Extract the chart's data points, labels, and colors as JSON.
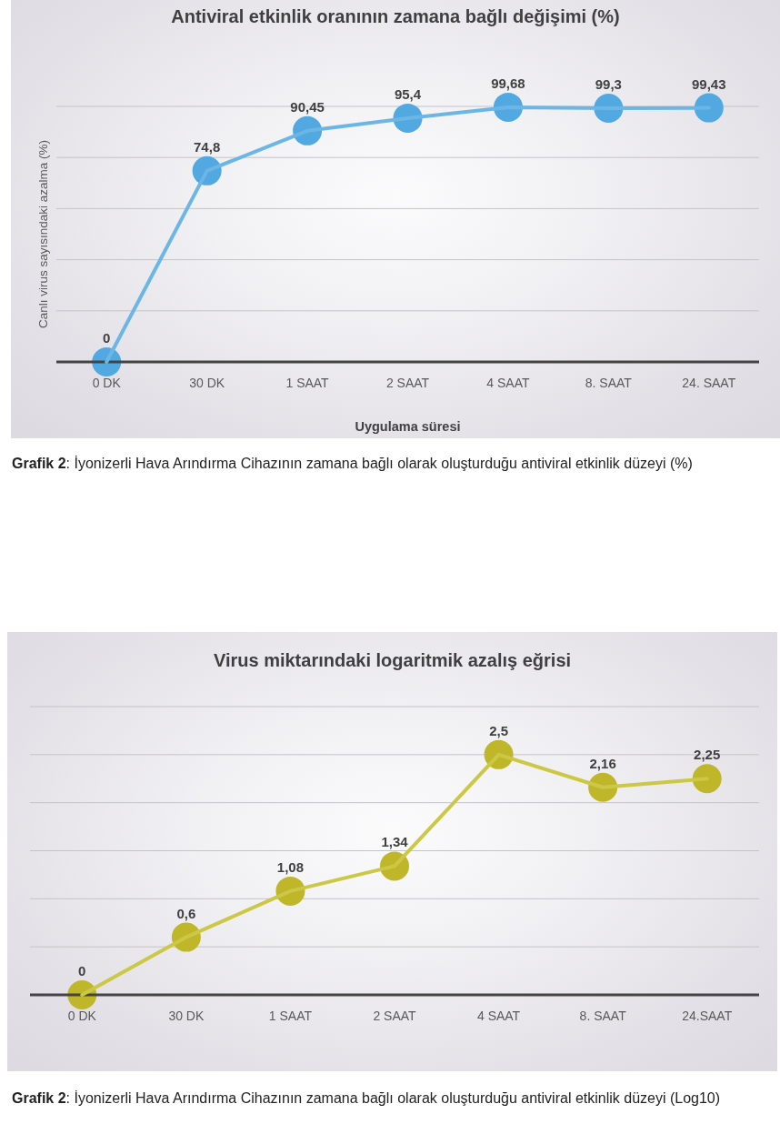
{
  "chart_data": [
    {
      "type": "line",
      "title": "Antiviral etkinlik oranının zamana bağlı değişimi (%)",
      "ylabel": "Canlı virus sayısındaki azalma (%)",
      "xlabel": "Uygulama süresi",
      "categories": [
        "0 DK",
        "30 DK",
        "1 SAAT",
        "2 SAAT",
        "4 SAAT",
        "8. SAAT",
        "24. SAAT"
      ],
      "series": [
        {
          "color": "#6cb6e6",
          "colors": [
            "#52a8e0",
            "#52a8e0",
            "#52a8e0",
            "#52a8e0",
            "#52a8e0",
            "#52a8e0",
            "#52a8e0"
          ],
          "values": [
            0,
            74.8,
            90.45,
            95.4,
            99.68,
            99.3,
            99.43
          ],
          "value_labels": [
            "0",
            "74,8",
            "90,45",
            "95,4",
            "99,68",
            "99,3",
            "99,43"
          ]
        }
      ],
      "ylim": [
        0,
        100
      ],
      "grid": "y",
      "tick_labels": "x",
      "marker": "circle",
      "line_style": "solid",
      "annotations": [
        "Grafik 2: İyonizerli Hava Arındırma Cihazının zamana bağlı olarak oluşturduğu antiviral etkinlik düzeyi (%)"
      ]
    },
    {
      "type": "line",
      "title": "Virus miktarındaki logaritmik azalış eğrisi",
      "categories": [
        "0 DK",
        "30 DK",
        "1 SAAT",
        "2 SAAT",
        "4 SAAT",
        "8. SAAT",
        "24.SAAT"
      ],
      "series": [
        {
          "color": "#ccc846",
          "colors": [
            "#bfb62a",
            "#bfb62a",
            "#bfb62a",
            "#bfb62a",
            "#bfb62a",
            "#bfb62a",
            "#bfb62a"
          ],
          "values": [
            0,
            0.6,
            1.08,
            1.34,
            2.5,
            2.16,
            2.25
          ],
          "value_labels": [
            "0",
            "0,6",
            "1,08",
            "1,34",
            "2,5",
            "2,16",
            "2,25"
          ]
        }
      ],
      "ylim": [
        0,
        3
      ],
      "grid": "y",
      "tick_labels": "x",
      "marker": "circle",
      "line_style": "solid",
      "annotations": [
        "Grafik 2: İyonizerli Hava Arındırma Cihazının zamana bağlı olarak oluşturduğu antiviral etkinlik düzeyi (Log10)"
      ]
    }
  ]
}
